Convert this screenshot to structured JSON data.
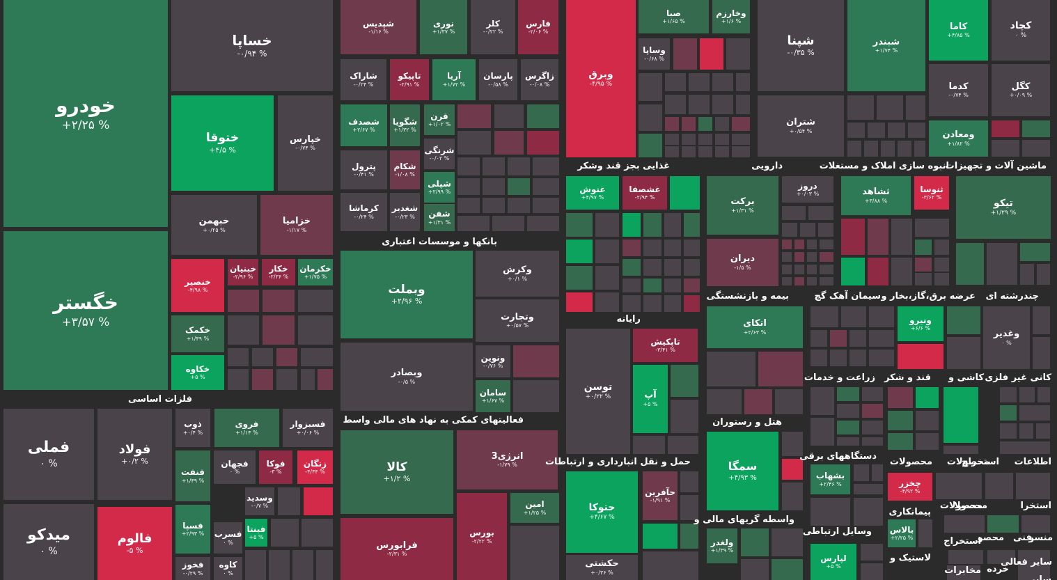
{
  "colors": {
    "background": "#2b2b2b",
    "neutral": "#4a4349",
    "pos_strong": "#0ba35e",
    "pos": "#2e7a56",
    "pos_weak": "#356a4f",
    "neg_weak": "#6e3a4c",
    "neg": "#8e2a44",
    "neg_strong": "#d42a4a"
  },
  "sectors": [
    {
      "name": "فلزات اساسی",
      "side": "left"
    },
    {
      "name": "بانکها و موسسات اعتباری",
      "side": "left"
    },
    {
      "name": "فعالیتهای کمکی به نهاد های مالی واسط",
      "side": "left"
    },
    {
      "name": "غذایی بجز قند وشکر",
      "side": "mid"
    },
    {
      "name": "دارویی",
      "side": "mid"
    },
    {
      "name": "انبوه سازی املاک و مستغلات",
      "side": "mid"
    },
    {
      "name": "ماشین آلات و تجهیزات",
      "side": "right"
    },
    {
      "name": "رایانه",
      "side": "mid"
    },
    {
      "name": "بیمه و بازنشستگی",
      "side": "mid"
    },
    {
      "name": "سیمان آهک گچ",
      "side": "mid"
    },
    {
      "name": "عرضه برق،گاز،بخار و",
      "side": "mid"
    },
    {
      "name": "چندرشته ای",
      "side": "right"
    },
    {
      "name": "زراعت و خدمات",
      "side": "mid"
    },
    {
      "name": "قند و شکر",
      "side": "mid"
    },
    {
      "name": "کاشی و",
      "side": "mid"
    },
    {
      "name": "کانی غیر فلزی",
      "side": "right"
    },
    {
      "name": "هتل و رستوران",
      "side": "mid"
    },
    {
      "name": "حمل و نقل انبارداری و ارتباطات",
      "side": "mid"
    },
    {
      "name": "دستگاههای برقی",
      "side": "mid"
    },
    {
      "name": "محصولات",
      "side": "mid"
    },
    {
      "name": "محصولات",
      "side": "mid"
    },
    {
      "name": "استخراج",
      "side": "mid"
    },
    {
      "name": "اطلاعات",
      "side": "right"
    },
    {
      "name": "واسطه گریهای مالی و",
      "side": "mid"
    },
    {
      "name": "پیمانکاری",
      "side": "mid"
    },
    {
      "name": "محصولات",
      "side": "mid"
    },
    {
      "name": "محصولا",
      "side": "mid"
    },
    {
      "name": "استخرا",
      "side": "right"
    },
    {
      "name": "وسایل ارتباطی",
      "side": "mid"
    },
    {
      "name": "استخراج",
      "side": "mid"
    },
    {
      "name": "محصو",
      "side": "mid"
    },
    {
      "name": "فنی",
      "side": "mid"
    },
    {
      "name": "منسو",
      "side": "right"
    },
    {
      "name": "لاستیک و",
      "side": "mid"
    },
    {
      "name": "مخابرات",
      "side": "mid"
    },
    {
      "name": "خرده",
      "side": "mid"
    },
    {
      "name": "سایر فعالی",
      "side": "right"
    },
    {
      "name": "سایر",
      "side": "right"
    }
  ],
  "tiles": [
    {
      "name": "خودرو",
      "change": "+۲/۲۵ %",
      "c": "pos"
    },
    {
      "name": "خگستر",
      "change": "+۳/۵۷ %",
      "c": "pos"
    },
    {
      "name": "خساپا",
      "change": "-۰/۹۴ %",
      "c": "neutral"
    },
    {
      "name": "ختوقا",
      "change": "+۴/۵ %",
      "c": "pos_strong"
    },
    {
      "name": "خپارس",
      "change": "-۰/۷۴ %",
      "c": "neutral"
    },
    {
      "name": "خبهمن",
      "change": "+۰/۲۵ %",
      "c": "neutral"
    },
    {
      "name": "خزامیا",
      "change": "-۱/۱۷ %",
      "c": "neg_weak"
    },
    {
      "name": "خنصیر",
      "change": "-۴/۹۸ %",
      "c": "neg_strong"
    },
    {
      "name": "خبنیان",
      "change": "-۲/۹۶ %",
      "c": "neg"
    },
    {
      "name": "خکار",
      "change": "-۲/۳۶ %",
      "c": "neg"
    },
    {
      "name": "خکرمان",
      "change": "+۱/۷۵ %",
      "c": "pos"
    },
    {
      "name": "خکمک",
      "change": "+۱/۴۹ %",
      "c": "pos_weak"
    },
    {
      "name": "خکاوه",
      "change": "+۵ %",
      "c": "pos_strong"
    },
    {
      "name": "شپدیس",
      "change": "-۱/۱۶ %",
      "c": "neg_weak"
    },
    {
      "name": "نوری",
      "change": "+۱/۳۷ %",
      "c": "pos_weak"
    },
    {
      "name": "کلر",
      "change": "-۰/۲۲ %",
      "c": "neutral"
    },
    {
      "name": "فارس",
      "change": "-۲/۰۶ %",
      "c": "neg"
    },
    {
      "name": "شاراک",
      "change": "-۰/۲۴ %",
      "c": "neutral"
    },
    {
      "name": "تاپیکو",
      "change": "-۲/۹۱ %",
      "c": "neg"
    },
    {
      "name": "آریا",
      "change": "+۱/۷۲ %",
      "c": "pos"
    },
    {
      "name": "پارسان",
      "change": "-۰/۵۸ %",
      "c": "neutral"
    },
    {
      "name": "زاگرس",
      "change": "-۰/۰۸ %",
      "c": "neutral"
    },
    {
      "name": "شصدف",
      "change": "+۲/۶۷ %",
      "c": "pos"
    },
    {
      "name": "شگویا",
      "change": "+۱/۳۲ %",
      "c": "pos_weak"
    },
    {
      "name": "قرن",
      "change": "+۱/۰۲ %",
      "c": "pos_weak"
    },
    {
      "name": "شرنگی",
      "change": "-۰/۰۲ %",
      "c": "neutral"
    },
    {
      "name": "پترول",
      "change": "-۰/۴۱ %",
      "c": "neutral"
    },
    {
      "name": "شکام",
      "change": "-۱/۰۸ %",
      "c": "neg_weak"
    },
    {
      "name": "شپلی",
      "change": "+۲/۹۹ %",
      "c": "pos"
    },
    {
      "name": "کرماشا",
      "change": "-۰/۲۴ %",
      "c": "neutral"
    },
    {
      "name": "شغدیر",
      "change": "-۰/۲۳ %",
      "c": "neutral"
    },
    {
      "name": "شفن",
      "change": "+۱/۳۱ %",
      "c": "pos_weak"
    },
    {
      "name": "فملی",
      "change": "۰ %",
      "c": "neutral"
    },
    {
      "name": "فولاد",
      "change": "+۰/۲ %",
      "c": "neutral"
    },
    {
      "name": "میدکو",
      "change": "۰ %",
      "c": "neutral"
    },
    {
      "name": "فالوم",
      "change": "-۵ %",
      "c": "neg_strong"
    },
    {
      "name": "ذوب",
      "change": "+۰/۴ %",
      "c": "neutral"
    },
    {
      "name": "فروی",
      "change": "+۱/۱۴ %",
      "c": "pos_weak"
    },
    {
      "name": "فسبزوار",
      "change": "+۰/۰۶ %",
      "c": "neutral"
    },
    {
      "name": "فنفت",
      "change": "+۱/۴۹ %",
      "c": "pos_weak"
    },
    {
      "name": "فجهان",
      "change": "۰ %",
      "c": "neutral"
    },
    {
      "name": "فوکا",
      "change": "-۳ %",
      "c": "neg"
    },
    {
      "name": "زنگان",
      "change": "-۴/۴۴ %",
      "c": "neg_strong"
    },
    {
      "name": "وسدید",
      "change": "-۰/۷ %",
      "c": "neutral"
    },
    {
      "name": "فسپا",
      "change": "+۲/۹۳ %",
      "c": "pos"
    },
    {
      "name": "فسرب",
      "change": "۰ %",
      "c": "neutral"
    },
    {
      "name": "فبنتا",
      "change": "+۵ %",
      "c": "pos_strong"
    },
    {
      "name": "فخوز",
      "change": "-۰/۲۹ %",
      "c": "neutral"
    },
    {
      "name": "کاوه",
      "change": "۰ %",
      "c": "neutral"
    },
    {
      "name": "وبملت",
      "change": "+۲/۹۶ %",
      "c": "pos"
    },
    {
      "name": "وکرش",
      "change": "+۰/۱ %",
      "c": "neutral"
    },
    {
      "name": "وتجارت",
      "change": "+۰/۵۷ %",
      "c": "neutral"
    },
    {
      "name": "وبصادر",
      "change": "-۰/۵ %",
      "c": "neutral"
    },
    {
      "name": "ونوین",
      "change": "-۰/۷۶ %",
      "c": "neutral"
    },
    {
      "name": "سامان",
      "change": "+۱/۶۷ %",
      "c": "pos_weak"
    },
    {
      "name": "کالا",
      "change": "+۱/۲ %",
      "c": "pos_weak"
    },
    {
      "name": "انرژی3",
      "change": "-۱/۷۹ %",
      "c": "neg_weak"
    },
    {
      "name": "امین",
      "change": "+۱/۲۵ %",
      "c": "pos_weak"
    },
    {
      "name": "فرابورس",
      "change": "-۲/۳۱ %",
      "c": "neg"
    },
    {
      "name": "بورس",
      "change": "-۲/۲۲ %",
      "c": "neg"
    },
    {
      "name": "وبرق",
      "change": "-۴/۹۵ %",
      "c": "neg_strong"
    },
    {
      "name": "صبا",
      "change": "+۱/۶۵ %",
      "c": "pos_weak"
    },
    {
      "name": "وخارزم",
      "change": "+۱/۶ %",
      "c": "pos_weak"
    },
    {
      "name": "وساپا",
      "change": "-۰/۶۸ %",
      "c": "neutral"
    },
    {
      "name": "شپنا",
      "change": "-۰/۳۵ %",
      "c": "neutral"
    },
    {
      "name": "شبندر",
      "change": "+۱/۷۴ %",
      "c": "pos"
    },
    {
      "name": "شتران",
      "change": "+۰/۵۴ %",
      "c": "neutral"
    },
    {
      "name": "کاما",
      "change": "+۴/۸۵ %",
      "c": "pos_strong"
    },
    {
      "name": "کچاد",
      "change": "۰ %",
      "c": "neutral"
    },
    {
      "name": "کدما",
      "change": "-۰/۷۴ %",
      "c": "neutral"
    },
    {
      "name": "کگل",
      "change": "+۰/۰۹ %",
      "c": "neutral"
    },
    {
      "name": "ومعادن",
      "change": "+۱/۸۲ %",
      "c": "pos"
    },
    {
      "name": "غنوش",
      "change": "+۴/۹۷ %",
      "c": "pos_strong"
    },
    {
      "name": "غشصفا",
      "change": "-۲/۹۴ %",
      "c": "neg"
    },
    {
      "name": "برکت",
      "change": "+۱/۳۱ %",
      "c": "pos_weak"
    },
    {
      "name": "دروز",
      "change": "+۰/۰۳ %",
      "c": "neutral"
    },
    {
      "name": "دیران",
      "change": "-۱/۵ %",
      "c": "neg_weak"
    },
    {
      "name": "ثشاهد",
      "change": "+۳/۸۸ %",
      "c": "pos"
    },
    {
      "name": "ثنوسا",
      "change": "-۳/۶۲ %",
      "c": "neg_strong"
    },
    {
      "name": "تیکو",
      "change": "+۱/۲۹ %",
      "c": "pos_weak"
    },
    {
      "name": "توسن",
      "change": "+۰/۲۲ %",
      "c": "neutral"
    },
    {
      "name": "تاپکیش",
      "change": "-۳/۴۱ %",
      "c": "neg"
    },
    {
      "name": "آپ",
      "change": "+۵ %",
      "c": "pos_strong"
    },
    {
      "name": "اتکای",
      "change": "+۲/۶۳ %",
      "c": "pos"
    },
    {
      "name": "ونیرو",
      "change": "+۶/۶ %",
      "c": "pos_strong"
    },
    {
      "name": "وغدیر",
      "change": "۰ %",
      "c": "neutral"
    },
    {
      "name": "سمگا",
      "change": "+۴/۹۳ %",
      "c": "pos_strong"
    },
    {
      "name": "حتوکا",
      "change": "+۴/۶۷ %",
      "c": "pos_strong"
    },
    {
      "name": "حآفرین",
      "change": "-۱/۹۱ %",
      "c": "neg_weak"
    },
    {
      "name": "حکشتی",
      "change": "+۰/۳۶ %",
      "c": "neutral"
    },
    {
      "name": "بشهاب",
      "change": "+۲/۴۶ %",
      "c": "pos"
    },
    {
      "name": "چخزر",
      "change": "-۴/۹۲ %",
      "c": "neg_strong"
    },
    {
      "name": "بالاس",
      "change": "+۲/۲۵ %",
      "c": "pos"
    },
    {
      "name": "ولغدر",
      "change": "+۱/۳۹ %",
      "c": "pos_weak"
    },
    {
      "name": "لپارس",
      "change": "+۵ %",
      "c": "pos_strong"
    }
  ]
}
